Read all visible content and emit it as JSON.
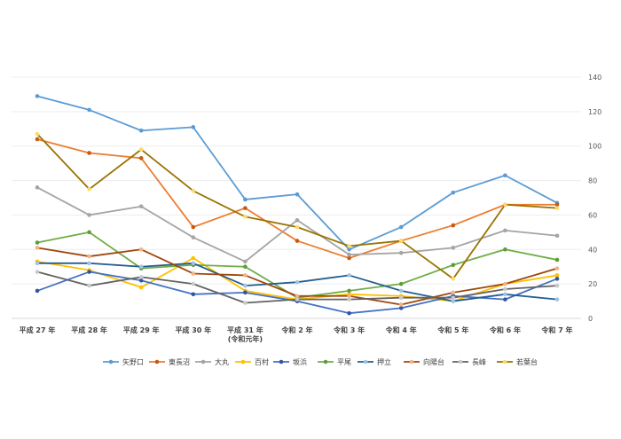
{
  "chart_data": {
    "type": "line",
    "title": "",
    "xlabel": "",
    "ylabel": "",
    "categories": [
      "平成 27 年",
      "平成 28 年",
      "平成 29 年",
      "平成 30 年",
      "平成 31 年\n(令和元年)",
      "令和 2 年",
      "令和 3 年",
      "令和 4 年",
      "令和 5 年",
      "令和 6 年",
      "令和 7 年"
    ],
    "ylim": [
      0,
      140
    ],
    "yticks": [
      0,
      20,
      40,
      60,
      80,
      100,
      120,
      140
    ],
    "y_axis_side": "right",
    "grid": true,
    "legend": "bottom",
    "series": [
      {
        "name": "矢野口",
        "line": "#5B9BD5",
        "marker": "#5B9BD5",
        "values": [
          129,
          121,
          109,
          111,
          69,
          72,
          40,
          53,
          73,
          83,
          67
        ]
      },
      {
        "name": "東長沼",
        "line": "#ED7D31",
        "marker": "#C55A11",
        "values": [
          104,
          96,
          93,
          53,
          64,
          45,
          35,
          45,
          54,
          66,
          66
        ]
      },
      {
        "name": "大丸",
        "line": "#A5A5A5",
        "marker": "#A5A5A5",
        "values": [
          76,
          60,
          65,
          47,
          33,
          57,
          37,
          38,
          41,
          51,
          48
        ]
      },
      {
        "name": "百村",
        "line": "#FFC000",
        "marker": "#FFC000",
        "values": [
          33,
          28,
          18,
          35,
          16,
          11,
          14,
          13,
          10,
          20,
          25
        ]
      },
      {
        "name": "坂浜",
        "line": "#4472C4",
        "marker": "#2F55A4",
        "values": [
          16,
          27,
          22,
          14,
          15,
          10,
          3,
          6,
          13,
          11,
          23
        ]
      },
      {
        "name": "平尾",
        "line": "#70AD47",
        "marker": "#5E9B3A",
        "values": [
          44,
          50,
          29,
          31,
          30,
          12,
          16,
          20,
          31,
          40,
          34
        ]
      },
      {
        "name": "押立",
        "line": "#255E91",
        "marker": "#9DC3E6",
        "values": [
          32,
          32,
          30,
          32,
          19,
          21,
          25,
          16,
          10,
          14,
          11
        ]
      },
      {
        "name": "向陽台",
        "line": "#9E480E",
        "marker": "#F4B183",
        "values": [
          41,
          36,
          40,
          26,
          25,
          13,
          13,
          8,
          15,
          20,
          29
        ]
      },
      {
        "name": "長峰",
        "line": "#636363",
        "marker": "#C9C9C9",
        "values": [
          27,
          19,
          24,
          20,
          9,
          11,
          11,
          12,
          12,
          17,
          19
        ]
      },
      {
        "name": "若葉台",
        "line": "#997300",
        "marker": "#FFD966",
        "values": [
          107,
          75,
          98,
          74,
          59,
          53,
          42,
          45,
          23,
          66,
          64
        ]
      }
    ]
  }
}
